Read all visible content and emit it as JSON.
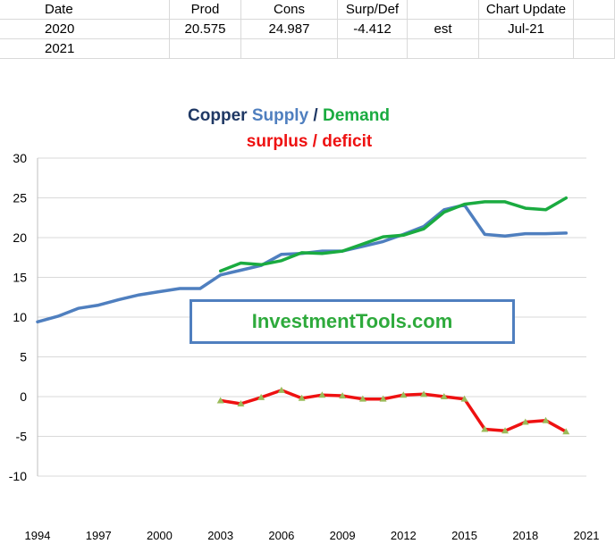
{
  "sheet": {
    "headers": [
      "Date",
      "Prod",
      "Cons",
      "Surp/Def",
      "",
      "Chart Update"
    ],
    "rows": [
      [
        "2020",
        "20.575",
        "24.987",
        "-4.412",
        "est",
        "Jul-21"
      ],
      [
        "2021",
        "",
        "",
        "",
        "",
        ""
      ]
    ]
  },
  "watermark": "InvestmentTools.com",
  "colors": {
    "supply": "#4f7fbf",
    "demand": "#1aab40",
    "surplus": "#ee1111",
    "marker": "#9bbb59",
    "title_dark": "#1f3864"
  },
  "chart_data": {
    "type": "line",
    "title_parts": [
      {
        "text": "Copper ",
        "color": "#1f3864"
      },
      {
        "text": "Supply",
        "color": "#4f7fbf"
      },
      {
        "text": " / ",
        "color": "#1f3864"
      },
      {
        "text": "Demand",
        "color": "#1aab40"
      }
    ],
    "subtitle_parts": [
      {
        "text": "surplus / deficit",
        "color": "#ee1111"
      }
    ],
    "xlim": [
      1994,
      2021
    ],
    "ylim": [
      -10,
      30
    ],
    "y_ticks": [
      -10,
      -5,
      0,
      5,
      10,
      15,
      20,
      25,
      30
    ],
    "x_ticks": [
      1994,
      1997,
      2000,
      2003,
      2006,
      2009,
      2012,
      2015,
      2018,
      2021
    ],
    "grid": "horizontal",
    "series": [
      {
        "key": "supply",
        "color": "#4f7fbf",
        "points": [
          [
            1994,
            9.4
          ],
          [
            1995,
            10.1
          ],
          [
            1996,
            11.1
          ],
          [
            1997,
            11.5
          ],
          [
            1998,
            12.2
          ],
          [
            1999,
            12.8
          ],
          [
            2000,
            13.2
          ],
          [
            2001,
            13.6
          ],
          [
            2002,
            13.6
          ],
          [
            2003,
            15.3
          ],
          [
            2004,
            15.9
          ],
          [
            2005,
            16.5
          ],
          [
            2006,
            17.9
          ],
          [
            2007,
            18.0
          ],
          [
            2008,
            18.3
          ],
          [
            2009,
            18.3
          ],
          [
            2010,
            18.9
          ],
          [
            2011,
            19.5
          ],
          [
            2012,
            20.4
          ],
          [
            2013,
            21.4
          ],
          [
            2014,
            23.5
          ],
          [
            2015,
            24.1
          ],
          [
            2016,
            20.4
          ],
          [
            2017,
            20.2
          ],
          [
            2018,
            20.5
          ],
          [
            2019,
            20.5
          ],
          [
            2020,
            20.575
          ]
        ]
      },
      {
        "key": "demand",
        "color": "#1aab40",
        "points": [
          [
            2003,
            15.8
          ],
          [
            2004,
            16.8
          ],
          [
            2005,
            16.6
          ],
          [
            2006,
            17.1
          ],
          [
            2007,
            18.1
          ],
          [
            2008,
            18.0
          ],
          [
            2009,
            18.3
          ],
          [
            2010,
            19.2
          ],
          [
            2011,
            20.1
          ],
          [
            2012,
            20.3
          ],
          [
            2013,
            21.1
          ],
          [
            2014,
            23.2
          ],
          [
            2015,
            24.2
          ],
          [
            2016,
            24.5
          ],
          [
            2017,
            24.5
          ],
          [
            2018,
            23.7
          ],
          [
            2019,
            23.5
          ],
          [
            2020,
            24.987
          ]
        ]
      },
      {
        "key": "surplus",
        "color": "#ee1111",
        "marker": "triangle",
        "points": [
          [
            2003,
            -0.5
          ],
          [
            2004,
            -0.9
          ],
          [
            2005,
            -0.1
          ],
          [
            2006,
            0.8
          ],
          [
            2007,
            -0.2
          ],
          [
            2008,
            0.2
          ],
          [
            2009,
            0.1
          ],
          [
            2010,
            -0.3
          ],
          [
            2011,
            -0.3
          ],
          [
            2012,
            0.2
          ],
          [
            2013,
            0.3
          ],
          [
            2014,
            0.0
          ],
          [
            2015,
            -0.3
          ],
          [
            2016,
            -4.1
          ],
          [
            2017,
            -4.3
          ],
          [
            2018,
            -3.2
          ],
          [
            2019,
            -3.0
          ],
          [
            2020,
            -4.412
          ]
        ]
      }
    ]
  }
}
